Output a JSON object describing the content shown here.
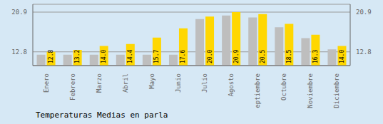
{
  "chart_data": {
    "type": "bar",
    "title": "Temperaturas Medias en parla",
    "categories": [
      "Enero",
      "Febrero",
      "Marzo",
      "Abril",
      "Mayo",
      "Junio",
      "Julio",
      "Agosto",
      "Septiembre",
      "Octubre",
      "Noviembre",
      "Diciembre"
    ],
    "series": [
      {
        "color": "#BEBEBE",
        "values": [
          12.2,
          12.2,
          12.2,
          12.2,
          12.2,
          12.2,
          19.5,
          20.2,
          19.8,
          17.8,
          15.6,
          13.3
        ]
      },
      {
        "color": "#FFD700",
        "values": [
          12.8,
          13.2,
          14.0,
          14.4,
          15.7,
          17.6,
          20.0,
          20.9,
          20.5,
          18.5,
          16.3,
          14.0
        ],
        "value_labels": [
          "12.8",
          "13.2",
          "14.0",
          "14.4",
          "15.7",
          "17.6",
          "20.0",
          "20.9",
          "20.5",
          "18.5",
          "16.3",
          "14.0"
        ],
        "data_labels": true
      }
    ],
    "ylim": [
      10.0,
      22.5
    ],
    "yticks": [
      12.8,
      20.9
    ],
    "grid": true
  }
}
